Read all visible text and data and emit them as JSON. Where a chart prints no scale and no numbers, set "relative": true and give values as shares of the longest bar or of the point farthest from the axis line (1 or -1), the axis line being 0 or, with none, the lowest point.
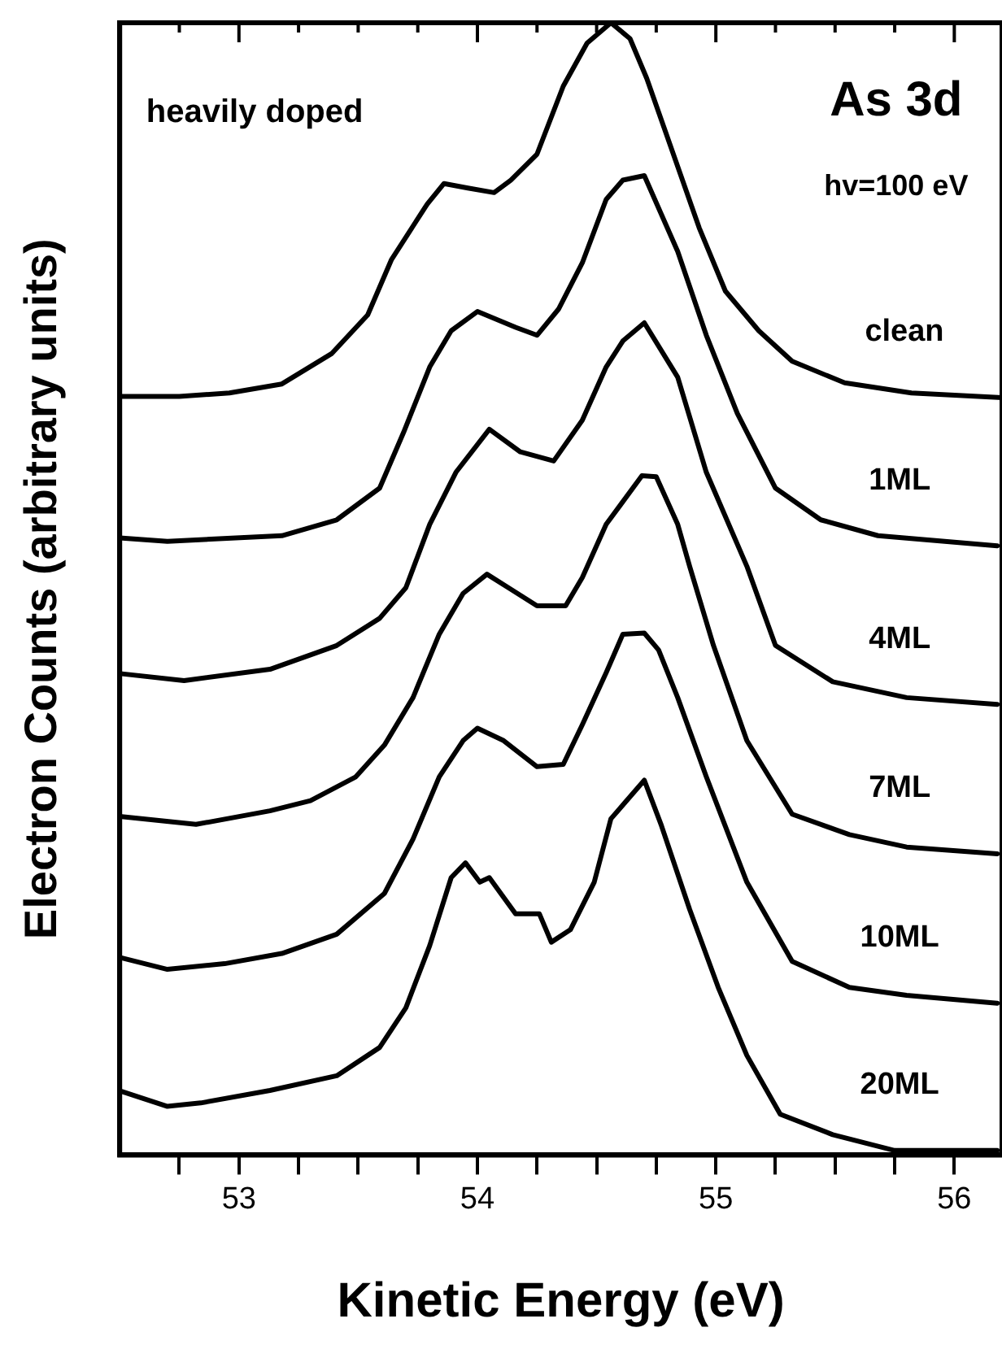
{
  "chart_data": {
    "type": "line",
    "xlabel": "Kinetic Energy (eV)",
    "ylabel": "Electron Counts (arbitrary units)",
    "relative": true,
    "legend": false,
    "grid": false,
    "marker": "none",
    "line_style": "solid",
    "xlim": [
      52.5,
      56.2
    ],
    "xticks": [
      {
        "value": 52.75,
        "label": null
      },
      53,
      {
        "value": 53.25,
        "label": null
      },
      {
        "value": 53.5,
        "label": null
      },
      {
        "value": 53.75,
        "label": null
      },
      54,
      {
        "value": 54.25,
        "label": null
      },
      {
        "value": 54.5,
        "label": null
      },
      {
        "value": 54.75,
        "label": null
      },
      55,
      {
        "value": 55.25,
        "label": null
      },
      {
        "value": 55.5,
        "label": null
      },
      {
        "value": 55.75,
        "label": null
      },
      56
    ],
    "annotations": [
      "heavily doped",
      "As 3d",
      "hv=100 eV"
    ],
    "series": [
      {
        "name": "clean",
        "color": "#000000",
        "x": [
          52.5,
          52.75,
          52.96,
          53.18,
          53.39,
          53.54,
          53.64,
          53.79,
          53.86,
          53.96,
          54.07,
          54.14,
          54.25,
          54.36,
          54.46,
          54.56,
          54.64,
          54.71,
          54.79,
          54.86,
          54.93,
          55.04,
          55.18,
          55.32,
          55.54,
          55.82,
          56.2
        ],
        "values": [
          0.67,
          0.67,
          0.673,
          0.681,
          0.708,
          0.742,
          0.791,
          0.84,
          0.858,
          0.854,
          0.85,
          0.861,
          0.884,
          0.944,
          0.982,
          1,
          0.986,
          0.951,
          0.903,
          0.861,
          0.819,
          0.763,
          0.728,
          0.701,
          0.682,
          0.673,
          0.669
        ]
      },
      {
        "name": "1ML",
        "color": "#000000",
        "x": [
          52.5,
          52.7,
          53.18,
          53.41,
          53.59,
          53.69,
          53.8,
          53.89,
          54.0,
          54.16,
          54.25,
          54.34,
          54.44,
          54.54,
          54.61,
          54.7,
          54.84,
          54.96,
          55.09,
          55.25,
          55.44,
          55.68,
          56.18
        ],
        "values": [
          0.545,
          0.542,
          0.547,
          0.561,
          0.589,
          0.638,
          0.696,
          0.728,
          0.745,
          0.731,
          0.724,
          0.747,
          0.788,
          0.844,
          0.861,
          0.865,
          0.798,
          0.724,
          0.655,
          0.589,
          0.561,
          0.547,
          0.538
        ]
      },
      {
        "name": "4ML",
        "color": "#000000",
        "x": [
          52.51,
          52.77,
          53.13,
          53.41,
          53.59,
          53.7,
          53.8,
          53.91,
          54.05,
          54.18,
          54.32,
          54.44,
          54.54,
          54.61,
          54.7,
          54.84,
          54.96,
          55.13,
          55.25,
          55.49,
          55.8,
          56.18
        ],
        "values": [
          0.425,
          0.419,
          0.429,
          0.45,
          0.474,
          0.501,
          0.557,
          0.603,
          0.641,
          0.621,
          0.613,
          0.649,
          0.696,
          0.719,
          0.735,
          0.687,
          0.603,
          0.52,
          0.45,
          0.418,
          0.404,
          0.398
        ]
      },
      {
        "name": "7ML",
        "color": "#000000",
        "x": [
          52.5,
          52.82,
          53.13,
          53.3,
          53.49,
          53.61,
          53.73,
          53.84,
          53.94,
          54.04,
          54.13,
          54.25,
          54.37,
          54.44,
          54.54,
          54.69,
          54.75,
          54.84,
          54.89,
          54.99,
          55.13,
          55.32,
          55.56,
          55.8,
          56.18
        ],
        "values": [
          0.299,
          0.292,
          0.304,
          0.313,
          0.334,
          0.362,
          0.404,
          0.46,
          0.496,
          0.513,
          0.501,
          0.485,
          0.485,
          0.51,
          0.557,
          0.6,
          0.599,
          0.557,
          0.52,
          0.45,
          0.366,
          0.301,
          0.283,
          0.272,
          0.266
        ]
      },
      {
        "name": "10ML",
        "color": "#000000",
        "x": [
          52.51,
          52.7,
          52.94,
          53.18,
          53.41,
          53.61,
          53.73,
          53.84,
          53.94,
          54.0,
          54.11,
          54.25,
          54.36,
          54.44,
          54.54,
          54.61,
          54.7,
          54.76,
          54.84,
          54.96,
          55.13,
          55.32,
          55.56,
          55.8,
          56.18
        ],
        "values": [
          0.174,
          0.164,
          0.169,
          0.178,
          0.195,
          0.231,
          0.279,
          0.334,
          0.366,
          0.377,
          0.366,
          0.343,
          0.345,
          0.38,
          0.426,
          0.46,
          0.461,
          0.446,
          0.404,
          0.334,
          0.241,
          0.171,
          0.148,
          0.141,
          0.134
        ]
      },
      {
        "name": "20ML",
        "color": "#000000",
        "x": [
          52.51,
          52.7,
          52.84,
          53.13,
          53.41,
          53.59,
          53.7,
          53.8,
          53.89,
          53.95,
          54.01,
          54.05,
          54.16,
          54.26,
          54.31,
          54.39,
          54.49,
          54.56,
          54.7,
          54.77,
          54.89,
          55.01,
          55.13,
          55.27,
          55.49,
          55.75,
          56.18
        ],
        "values": [
          0.056,
          0.043,
          0.046,
          0.057,
          0.07,
          0.095,
          0.13,
          0.185,
          0.245,
          0.258,
          0.241,
          0.245,
          0.213,
          0.213,
          0.188,
          0.199,
          0.241,
          0.297,
          0.331,
          0.292,
          0.217,
          0.148,
          0.088,
          0.036,
          0.018,
          0.004,
          0.004
        ]
      }
    ]
  }
}
